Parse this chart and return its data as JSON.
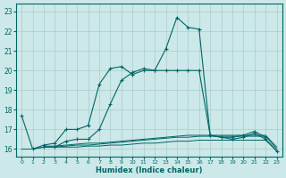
{
  "xlabel": "Humidex (Indice chaleur)",
  "bg_color": "#cce8e8",
  "line_color": "#006666",
  "grid_color": "#aacccc",
  "xlim": [
    -0.5,
    23.5
  ],
  "ylim": [
    15.6,
    23.4
  ],
  "yticks": [
    16,
    17,
    18,
    19,
    20,
    21,
    22,
    23
  ],
  "xticks": [
    0,
    1,
    2,
    3,
    4,
    5,
    6,
    7,
    8,
    9,
    10,
    11,
    12,
    13,
    14,
    15,
    16,
    17,
    18,
    19,
    20,
    21,
    22,
    23
  ],
  "series": [
    {
      "x": [
        0,
        1,
        2,
        3,
        4,
        5,
        6,
        7,
        8,
        9,
        10,
        11,
        12,
        13,
        14,
        15,
        16,
        17,
        18,
        19,
        20,
        21,
        22,
        23
      ],
      "y": [
        17.7,
        16.0,
        16.2,
        16.3,
        17.0,
        17.0,
        17.2,
        19.3,
        20.1,
        20.2,
        19.8,
        20.0,
        20.0,
        21.1,
        22.7,
        22.2,
        22.1,
        16.7,
        16.6,
        16.6,
        16.7,
        16.9,
        16.6,
        null
      ],
      "marker": true
    },
    {
      "x": [
        2,
        3,
        4,
        5,
        6,
        7,
        8,
        9,
        10,
        11,
        12,
        13,
        14,
        15,
        16,
        17,
        18,
        19,
        20,
        21,
        22,
        23
      ],
      "y": [
        16.1,
        16.1,
        16.4,
        16.5,
        16.5,
        17.0,
        18.3,
        19.5,
        19.9,
        20.1,
        20.0,
        20.0,
        20.0,
        20.0,
        20.0,
        16.7,
        16.6,
        16.5,
        16.6,
        16.8,
        16.5,
        15.9
      ],
      "marker": true
    },
    {
      "x": [
        0,
        1,
        2,
        3,
        4,
        5,
        6,
        7,
        8,
        9,
        10,
        11,
        12,
        13,
        14,
        15,
        16,
        17,
        18,
        19,
        20,
        21,
        22,
        23
      ],
      "y": [
        16.0,
        16.0,
        16.1,
        16.1,
        16.1,
        16.1,
        16.15,
        16.15,
        16.2,
        16.2,
        16.25,
        16.3,
        16.3,
        16.35,
        16.4,
        16.4,
        16.45,
        16.45,
        16.45,
        16.45,
        16.45,
        16.45,
        16.45,
        15.9
      ],
      "marker": false
    },
    {
      "x": [
        1,
        2,
        3,
        4,
        5,
        6,
        7,
        8,
        9,
        10,
        11,
        12,
        13,
        14,
        15,
        16,
        17,
        18,
        19,
        20,
        21,
        22,
        23
      ],
      "y": [
        16.0,
        16.1,
        16.1,
        16.15,
        16.2,
        16.2,
        16.25,
        16.3,
        16.35,
        16.4,
        16.45,
        16.5,
        16.55,
        16.6,
        16.6,
        16.65,
        16.65,
        16.65,
        16.65,
        16.65,
        16.65,
        16.65,
        16.0
      ],
      "marker": false
    },
    {
      "x": [
        2,
        3,
        4,
        5,
        6,
        7,
        8,
        9,
        10,
        11,
        12,
        13,
        14,
        15,
        16,
        17,
        18,
        19,
        20,
        21,
        22,
        23
      ],
      "y": [
        16.15,
        16.15,
        16.2,
        16.25,
        16.3,
        16.3,
        16.35,
        16.4,
        16.45,
        16.5,
        16.55,
        16.6,
        16.65,
        16.7,
        16.7,
        16.7,
        16.7,
        16.7,
        16.7,
        16.7,
        16.7,
        16.1
      ],
      "marker": false
    }
  ]
}
